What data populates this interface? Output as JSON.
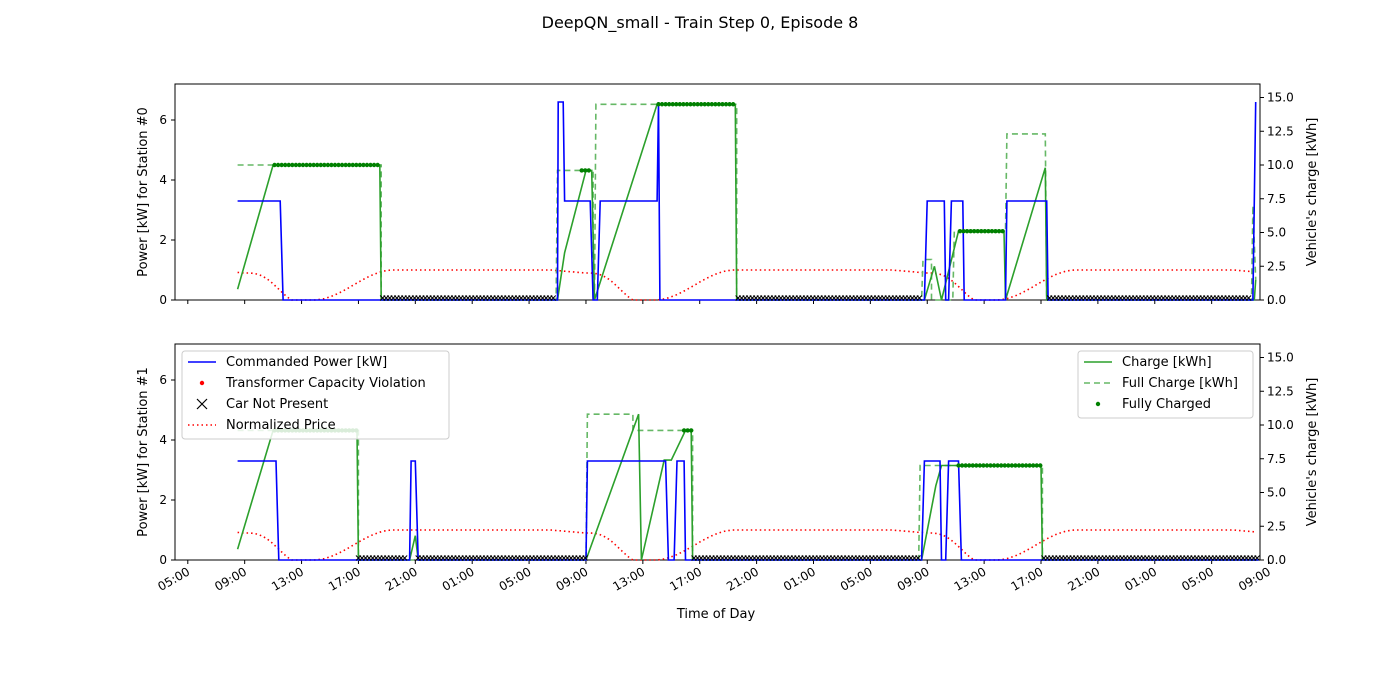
{
  "chart_data": {
    "title": "DeepQN_small - Train Step 0, Episode 8",
    "type": "line",
    "xlabel": "Time of Day",
    "x_ticks": [
      "05:00",
      "09:00",
      "13:00",
      "17:00",
      "21:00",
      "01:00",
      "05:00",
      "09:00",
      "13:00",
      "17:00",
      "21:00",
      "01:00",
      "05:00",
      "09:00",
      "13:00",
      "17:00",
      "21:00",
      "01:00",
      "05:00",
      "09:00"
    ],
    "x_range_hours": [
      4.1,
      80.4
    ],
    "y_left_ticks": [
      "0",
      "2",
      "4",
      "6"
    ],
    "y_left_range": [
      0,
      7.2
    ],
    "y_right_ticks": [
      "0.0",
      "2.5",
      "5.0",
      "7.5",
      "10.0",
      "12.5",
      "15.0"
    ],
    "y_right_range": [
      0,
      16
    ],
    "y_right_label": "Vehicle's charge [kWh]",
    "colors": {
      "power": "#0000ff",
      "violation": "#ff0000",
      "notpresent": "#000000",
      "price": "#ff0000",
      "charge": "#2ca02c",
      "full": "#66b866",
      "fully": "#008000"
    },
    "legend_left": [
      {
        "label": "Commanded Power [kW]",
        "style": "line-blue"
      },
      {
        "label": "Transformer Capacity Violation",
        "style": "dot-red"
      },
      {
        "label": "Car Not Present",
        "style": "x-black"
      },
      {
        "label": "Normalized Price",
        "style": "dotted-red"
      }
    ],
    "legend_right": [
      {
        "label": "Charge [kWh]",
        "style": "line-green"
      },
      {
        "label": "Full Charge [kWh]",
        "style": "dashed-green"
      },
      {
        "label": "Fully Charged",
        "style": "dot-green"
      }
    ],
    "panels": [
      {
        "ylabel": "Power [kW] for Station #0",
        "power": [
          [
            8.5,
            3.3
          ],
          [
            11.5,
            3.3
          ],
          [
            11.7,
            0
          ],
          [
            31,
            0
          ],
          [
            31.05,
            6.6
          ],
          [
            31.4,
            6.6
          ],
          [
            31.5,
            3.3
          ],
          [
            33.3,
            3.3
          ],
          [
            33.5,
            0
          ],
          [
            33.8,
            0
          ],
          [
            34,
            3.3
          ],
          [
            38,
            3.3
          ],
          [
            38.1,
            6.6
          ],
          [
            38.2,
            0
          ],
          [
            56.8,
            0
          ],
          [
            57,
            3.3
          ],
          [
            58.2,
            3.3
          ],
          [
            58.3,
            0
          ],
          [
            58.5,
            0
          ],
          [
            58.7,
            3.3
          ],
          [
            59.5,
            3.3
          ],
          [
            59.6,
            0
          ],
          [
            62.5,
            0
          ],
          [
            62.6,
            3.3
          ],
          [
            65.4,
            3.3
          ],
          [
            65.5,
            0
          ],
          [
            79.9,
            0
          ],
          [
            80.1,
            6.6
          ]
        ],
        "charge": [
          [
            8.5,
            0.8
          ],
          [
            11,
            10
          ],
          [
            18.5,
            10
          ],
          [
            18.6,
            0
          ],
          [
            31,
            0
          ],
          [
            31.5,
            3.5
          ],
          [
            33,
            9.6
          ],
          [
            33.4,
            9.6
          ],
          [
            33.6,
            0
          ],
          [
            38,
            14.5
          ],
          [
            43.5,
            14.5
          ],
          [
            43.6,
            0
          ],
          [
            56.8,
            0
          ],
          [
            57.5,
            2.5
          ],
          [
            58,
            0
          ],
          [
            59.2,
            5.1
          ],
          [
            62.4,
            5.1
          ],
          [
            62.5,
            0
          ],
          [
            65.3,
            9.8
          ],
          [
            65.4,
            0
          ],
          [
            80,
            0
          ],
          [
            80.1,
            1.5
          ]
        ],
        "full_charge": [
          [
            8.5,
            10
          ],
          [
            18.6,
            10
          ],
          [
            18.6,
            0
          ],
          [
            30.9,
            0
          ],
          [
            31,
            9.6
          ],
          [
            33.5,
            9.6
          ],
          [
            33.5,
            0
          ],
          [
            33.6,
            0
          ],
          [
            33.7,
            14.5
          ],
          [
            43.6,
            14.5
          ],
          [
            43.6,
            0
          ],
          [
            56.6,
            0
          ],
          [
            56.7,
            3
          ],
          [
            57.3,
            3
          ],
          [
            57.3,
            0
          ],
          [
            58.8,
            0
          ],
          [
            58.9,
            5.1
          ],
          [
            62.5,
            5.1
          ],
          [
            62.6,
            12.3
          ],
          [
            65.3,
            12.3
          ],
          [
            65.4,
            0
          ],
          [
            79.8,
            0
          ],
          [
            79.9,
            7
          ],
          [
            80.1,
            1.5
          ]
        ],
        "fully_charged": [
          [
            11.1,
            18.4,
            10
          ],
          [
            32.7,
            33.3,
            9.6
          ],
          [
            38.1,
            43.4,
            14.5
          ],
          [
            59.3,
            62.3,
            5.1
          ]
        ],
        "not_present": [
          [
            18.7,
            30.9
          ],
          [
            43.7,
            56.6
          ],
          [
            65.6,
            79.8
          ]
        ],
        "price_low": [
          [
            12.3,
            13.8
          ],
          [
            36.3,
            37.8
          ],
          [
            60.3,
            61.8
          ]
        ]
      },
      {
        "ylabel": "Power [kW] for Station #1",
        "power": [
          [
            8.5,
            3.3
          ],
          [
            11.2,
            3.3
          ],
          [
            11.4,
            0
          ],
          [
            20.6,
            0
          ],
          [
            20.7,
            3.3
          ],
          [
            21,
            3.3
          ],
          [
            21.2,
            0
          ],
          [
            33,
            0
          ],
          [
            33.1,
            3.3
          ],
          [
            38.6,
            3.3
          ],
          [
            38.8,
            0
          ],
          [
            39.2,
            0
          ],
          [
            39.4,
            3.3
          ],
          [
            39.9,
            3.3
          ],
          [
            40,
            0
          ],
          [
            56.6,
            0
          ],
          [
            56.8,
            3.3
          ],
          [
            57.9,
            3.3
          ],
          [
            58,
            0
          ],
          [
            58.3,
            0
          ],
          [
            58.5,
            3.3
          ],
          [
            59.2,
            3.3
          ],
          [
            59.4,
            0
          ],
          [
            80.3,
            0
          ]
        ],
        "charge": [
          [
            8.5,
            0.8
          ],
          [
            11,
            9.6
          ],
          [
            16.9,
            9.6
          ],
          [
            17,
            0
          ],
          [
            20.6,
            0
          ],
          [
            21,
            1.8
          ],
          [
            21.2,
            0
          ],
          [
            33,
            0
          ],
          [
            36.7,
            10.8
          ],
          [
            36.9,
            0
          ],
          [
            38.5,
            7.4
          ],
          [
            39,
            7.4
          ],
          [
            40,
            9.6
          ],
          [
            40.4,
            9.6
          ],
          [
            40.5,
            0
          ],
          [
            56.6,
            0
          ],
          [
            57.6,
            5.5
          ],
          [
            58,
            7
          ],
          [
            58.5,
            7
          ],
          [
            65,
            7
          ],
          [
            65.1,
            0
          ],
          [
            80.3,
            0
          ]
        ],
        "full_charge": [
          [
            8.5,
            9.6
          ],
          [
            17,
            9.6
          ],
          [
            17,
            0
          ],
          [
            20.4,
            0
          ],
          [
            20.5,
            0
          ],
          [
            33,
            0
          ],
          [
            33.1,
            10.8
          ],
          [
            36.3,
            10.8
          ],
          [
            36.3,
            9.6
          ],
          [
            40.5,
            9.6
          ],
          [
            40.5,
            0
          ],
          [
            56.4,
            0
          ],
          [
            56.5,
            7
          ],
          [
            65.1,
            7
          ],
          [
            65.1,
            0
          ],
          [
            80.3,
            0
          ]
        ],
        "fully_charged": [
          [
            11.1,
            16.9,
            9.6
          ],
          [
            39.9,
            40.5,
            9.6
          ],
          [
            59.2,
            65,
            7
          ]
        ],
        "not_present": [
          [
            17,
            20.4
          ],
          [
            21.2,
            33
          ],
          [
            40.6,
            56.5
          ],
          [
            65.2,
            80.2
          ]
        ],
        "price_low": [
          [
            12.3,
            13.8
          ],
          [
            36.3,
            37.8
          ],
          [
            60.3,
            61.8
          ]
        ]
      }
    ]
  }
}
